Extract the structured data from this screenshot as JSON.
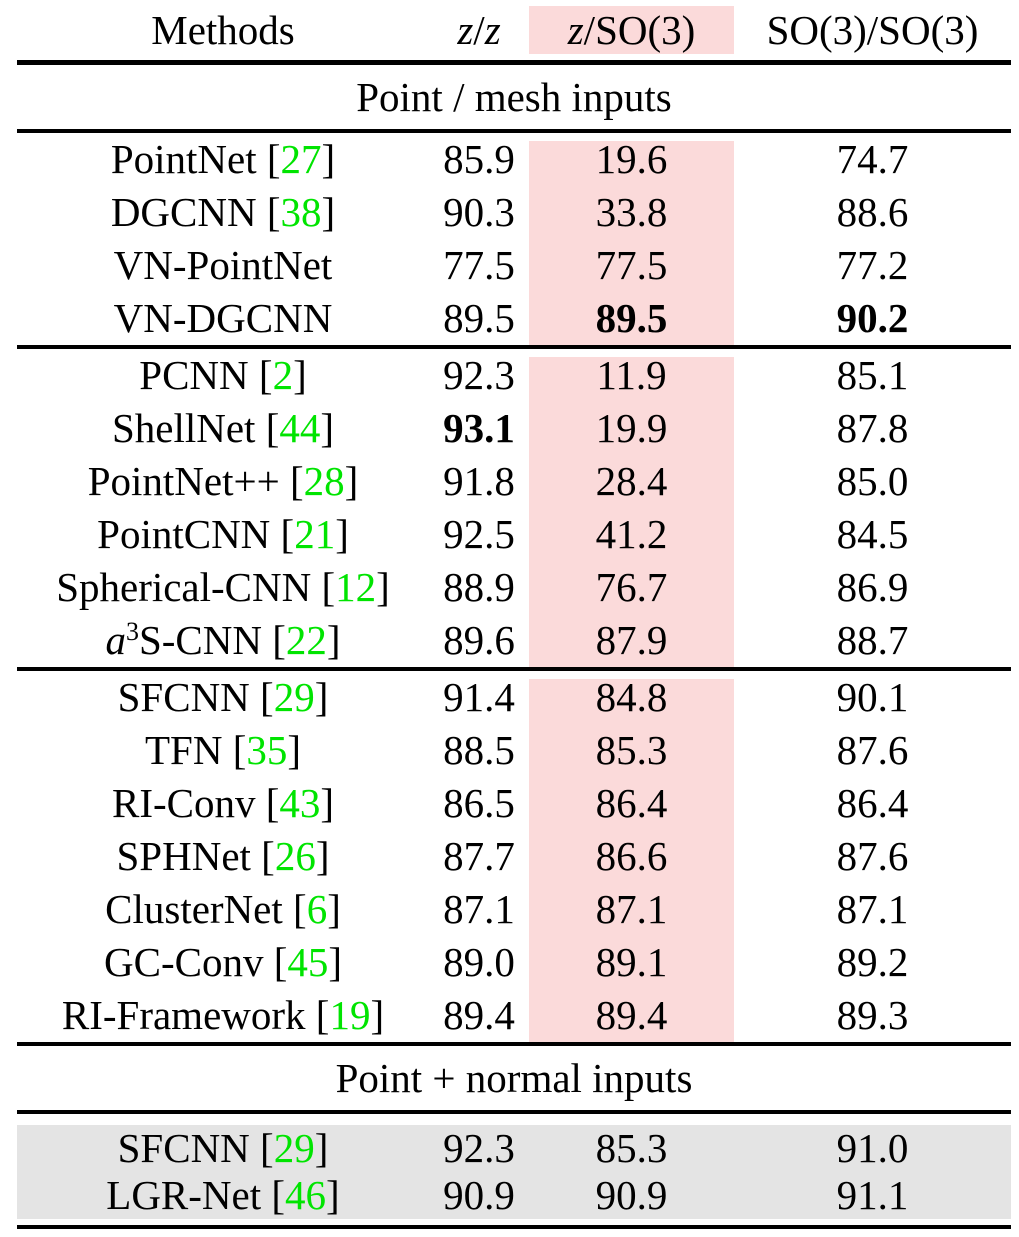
{
  "colors": {
    "highlight_pink": "#fbdada",
    "row_gray": "#e4e4e4",
    "citation_green": "#00e400",
    "rule_black": "#000000"
  },
  "cite_open": "[",
  "cite_close": "]",
  "table": {
    "header": {
      "methods": "Methods",
      "columns": [
        {
          "key": "z-z",
          "highlight": false,
          "parts": [
            {
              "t": "z",
              "i": true
            },
            {
              "t": "/"
            },
            {
              "t": "z",
              "i": true
            }
          ]
        },
        {
          "key": "z-so3",
          "highlight": true,
          "parts": [
            {
              "t": "z",
              "i": true
            },
            {
              "t": "/SO(3)"
            }
          ]
        },
        {
          "key": "so3-so3",
          "highlight": false,
          "parts": [
            {
              "t": "SO(3)/SO(3)"
            }
          ]
        }
      ]
    },
    "sections": [
      {
        "title": "Point / mesh inputs",
        "pink_column": true,
        "gray_background": false,
        "blocks": [
          {
            "rows": [
              {
                "method_parts": [
                  {
                    "t": "PointNet"
                  }
                ],
                "cite": "27",
                "values": [
                  "85.9",
                  "19.6",
                  "74.7"
                ],
                "bold": []
              },
              {
                "method_parts": [
                  {
                    "t": "DGCNN"
                  }
                ],
                "cite": "38",
                "values": [
                  "90.3",
                  "33.8",
                  "88.6"
                ],
                "bold": []
              },
              {
                "method_parts": [
                  {
                    "t": "VN-PointNet"
                  }
                ],
                "cite": null,
                "values": [
                  "77.5",
                  "77.5",
                  "77.2"
                ],
                "bold": []
              },
              {
                "method_parts": [
                  {
                    "t": "VN-DGCNN"
                  }
                ],
                "cite": null,
                "values": [
                  "89.5",
                  "89.5",
                  "90.2"
                ],
                "bold": [
                  1,
                  2
                ]
              }
            ]
          },
          {
            "rows": [
              {
                "method_parts": [
                  {
                    "t": "PCNN"
                  }
                ],
                "cite": "2",
                "values": [
                  "92.3",
                  "11.9",
                  "85.1"
                ],
                "bold": []
              },
              {
                "method_parts": [
                  {
                    "t": "ShellNet"
                  }
                ],
                "cite": "44",
                "values": [
                  "93.1",
                  "19.9",
                  "87.8"
                ],
                "bold": [
                  0
                ]
              },
              {
                "method_parts": [
                  {
                    "t": "PointNet++"
                  }
                ],
                "cite": "28",
                "values": [
                  "91.8",
                  "28.4",
                  "85.0"
                ],
                "bold": []
              },
              {
                "method_parts": [
                  {
                    "t": "PointCNN"
                  }
                ],
                "cite": "21",
                "values": [
                  "92.5",
                  "41.2",
                  "84.5"
                ],
                "bold": []
              },
              {
                "method_parts": [
                  {
                    "t": "Spherical-CNN"
                  }
                ],
                "cite": "12",
                "values": [
                  "88.9",
                  "76.7",
                  "86.9"
                ],
                "bold": []
              },
              {
                "method_parts": [
                  {
                    "t": "a",
                    "i": true
                  },
                  {
                    "t": "3",
                    "sup": true
                  },
                  {
                    "t": "S-CNN"
                  }
                ],
                "cite": "22",
                "values": [
                  "89.6",
                  "87.9",
                  "88.7"
                ],
                "bold": []
              }
            ]
          },
          {
            "rows": [
              {
                "method_parts": [
                  {
                    "t": "SFCNN"
                  }
                ],
                "cite": "29",
                "values": [
                  "91.4",
                  "84.8",
                  "90.1"
                ],
                "bold": []
              },
              {
                "method_parts": [
                  {
                    "t": "TFN"
                  }
                ],
                "cite": "35",
                "values": [
                  "88.5",
                  "85.3",
                  "87.6"
                ],
                "bold": []
              },
              {
                "method_parts": [
                  {
                    "t": "RI-Conv"
                  }
                ],
                "cite": "43",
                "values": [
                  "86.5",
                  "86.4",
                  "86.4"
                ],
                "bold": []
              },
              {
                "method_parts": [
                  {
                    "t": "SPHNet"
                  }
                ],
                "cite": "26",
                "values": [
                  "87.7",
                  "86.6",
                  "87.6"
                ],
                "bold": []
              },
              {
                "method_parts": [
                  {
                    "t": "ClusterNet"
                  }
                ],
                "cite": "6",
                "values": [
                  "87.1",
                  "87.1",
                  "87.1"
                ],
                "bold": []
              },
              {
                "method_parts": [
                  {
                    "t": "GC-Conv"
                  }
                ],
                "cite": "45",
                "values": [
                  "89.0",
                  "89.1",
                  "89.2"
                ],
                "bold": []
              },
              {
                "method_parts": [
                  {
                    "t": "RI-Framework"
                  }
                ],
                "cite": "19",
                "values": [
                  "89.4",
                  "89.4",
                  "89.3"
                ],
                "bold": []
              }
            ]
          }
        ]
      },
      {
        "title": "Point + normal inputs",
        "pink_column": false,
        "gray_background": true,
        "blocks": [
          {
            "rows": [
              {
                "method_parts": [
                  {
                    "t": "SFCNN"
                  }
                ],
                "cite": "29",
                "values": [
                  "92.3",
                  "85.3",
                  "91.0"
                ],
                "bold": []
              },
              {
                "method_parts": [
                  {
                    "t": "LGR-Net"
                  }
                ],
                "cite": "46",
                "values": [
                  "90.9",
                  "90.9",
                  "91.1"
                ],
                "bold": []
              }
            ]
          }
        ]
      }
    ]
  }
}
